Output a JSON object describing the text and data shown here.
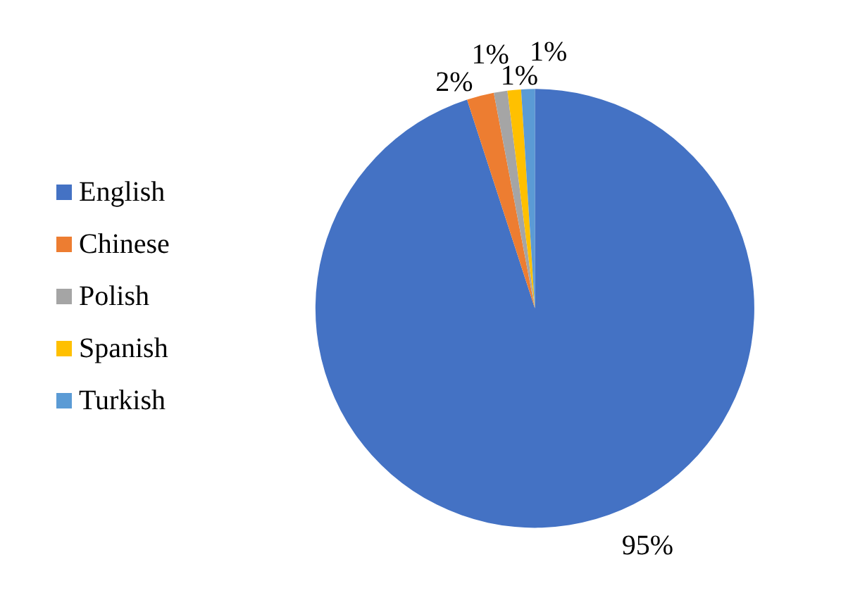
{
  "chart_data": {
    "type": "pie",
    "categories": [
      "English",
      "Chinese",
      "Polish",
      "Spanish",
      "Turkish"
    ],
    "values": [
      95,
      2,
      1,
      1,
      1
    ],
    "colors": [
      "#4472c4",
      "#ed7d31",
      "#a5a5a5",
      "#ffc000",
      "#5b9bd5"
    ],
    "value_labels": [
      "95%",
      "2%",
      "1%",
      "1%",
      "1%"
    ],
    "legend": "left"
  }
}
